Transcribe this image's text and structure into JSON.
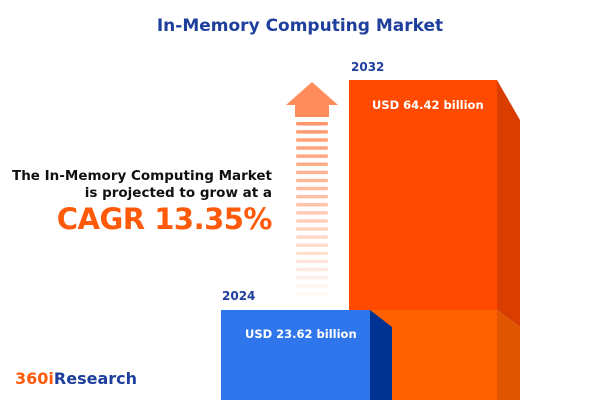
{
  "title": "In-Memory Computing Market",
  "description_line1": "The In-Memory Computing Market",
  "description_line2": "is projected to grow at a",
  "cagr_label": "CAGR 13.35%",
  "logo": {
    "part1": "360i",
    "part2": "Research",
    "color1": "#ff5a0a",
    "color2": "#1e3f9c"
  },
  "colors": {
    "bar_2024": "#2f76ec",
    "bar_2032": "#ff4a00",
    "arrow": "#ff8c5a"
  },
  "chart_data": {
    "type": "bar",
    "title": "In-Memory Computing Market",
    "categories": [
      "2024",
      "2032"
    ],
    "values": [
      23.62,
      64.42
    ],
    "value_labels": [
      "USD 23.62 billion",
      "USD 64.42 billion"
    ],
    "unit": "USD billion",
    "cagr_percent": 13.35
  }
}
